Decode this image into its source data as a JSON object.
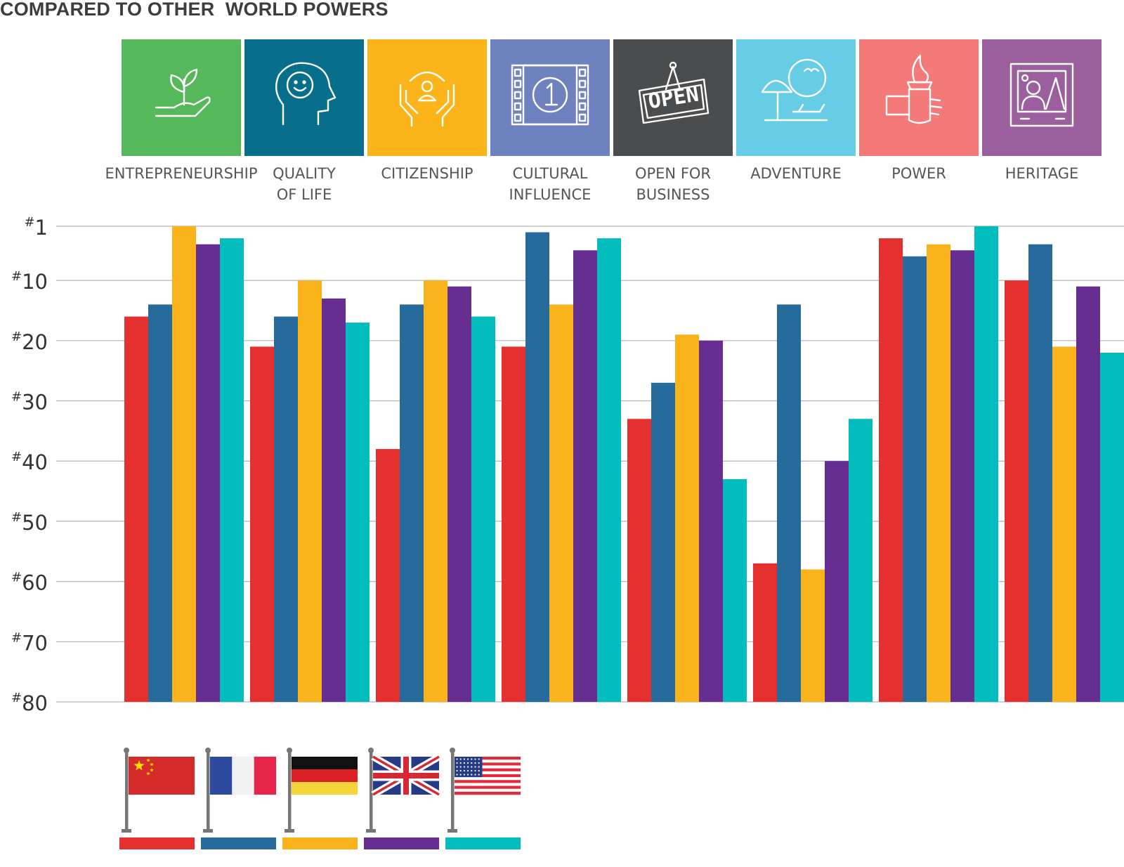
{
  "title": "COMPARED TO OTHER  WORLD POWERS",
  "chart_data": {
    "type": "bar",
    "title": "COMPARED TO OTHER  WORLD POWERS",
    "orientation": "vertical",
    "inverted_rank_axis": true,
    "categories": [
      {
        "label": [
          "ENTREPRENEURSHIP"
        ],
        "icon": "hand-sprout-icon",
        "color": "#55b85b"
      },
      {
        "label": [
          "QUALITY",
          "OF LIFE"
        ],
        "icon": "smiling-head-icon",
        "color": "#076f8c"
      },
      {
        "label": [
          "CITIZENSHIP"
        ],
        "icon": "hands-person-icon",
        "color": "#fbb51a"
      },
      {
        "label": [
          "CULTURAL",
          "INFLUENCE"
        ],
        "icon": "film-reel-icon",
        "color": "#6f82c0"
      },
      {
        "label": [
          "OPEN FOR",
          "BUSINESS"
        ],
        "icon": "open-sign-icon",
        "color": "#4b4c4e"
      },
      {
        "label": [
          "ADVENTURE"
        ],
        "icon": "beach-umbrella-icon",
        "color": "#67cde7"
      },
      {
        "label": [
          "POWER"
        ],
        "icon": "torch-icon",
        "color": "#f47a79"
      },
      {
        "label": [
          "HERITAGE"
        ],
        "icon": "framed-painting-icon",
        "color": "#9c5f9d"
      }
    ],
    "y_ticks": [
      1,
      10,
      20,
      30,
      40,
      50,
      60,
      70,
      80
    ],
    "y_tick_prefix": "#",
    "ylim": [
      1,
      80
    ],
    "series": [
      {
        "name": "China",
        "flag": "china-flag",
        "color": "#e53030",
        "values": [
          16,
          21,
          38,
          21,
          33,
          57,
          3,
          10
        ]
      },
      {
        "name": "France",
        "flag": "france-flag",
        "color": "#276a9c",
        "values": [
          14,
          16,
          14,
          2,
          27,
          14,
          6,
          4
        ]
      },
      {
        "name": "Germany",
        "flag": "germany-flag",
        "color": "#fbb31b",
        "values": [
          1,
          10,
          10,
          14,
          19,
          58,
          4,
          21
        ]
      },
      {
        "name": "United Kingdom",
        "flag": "uk-flag",
        "color": "#652e90",
        "values": [
          4,
          13,
          11,
          5,
          20,
          40,
          5,
          11
        ]
      },
      {
        "name": "United States",
        "flag": "usa-flag",
        "color": "#03bcbd",
        "values": [
          3,
          17,
          16,
          3,
          43,
          33,
          1,
          22
        ]
      }
    ]
  }
}
